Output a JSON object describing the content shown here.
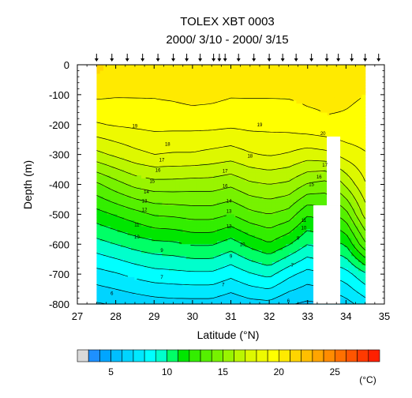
{
  "chart_data": {
    "type": "heatmap",
    "title": "TOLEX XBT 0003",
    "subtitle": "2000/ 3/10 - 2000/ 3/15",
    "xlabel": "Latitude (°N)",
    "ylabel": "Depth (m)",
    "xlim": [
      27,
      35
    ],
    "ylim": [
      -800,
      0
    ],
    "x_ticks": [
      "27",
      "28",
      "29",
      "30",
      "31",
      "32",
      "33",
      "34",
      "35"
    ],
    "y_ticks": [
      "0",
      "-100",
      "-200",
      "-300",
      "-400",
      "-500",
      "-600",
      "-700",
      "-800"
    ],
    "station_latitudes": [
      27.5,
      27.9,
      28.3,
      28.7,
      29.1,
      29.5,
      29.85,
      30.2,
      30.55,
      30.7,
      30.85,
      31.2,
      31.6,
      32.0,
      32.35,
      32.7,
      33.1,
      33.5,
      33.8,
      34.15,
      34.5,
      34.85
    ],
    "data_gaps": [
      {
        "lat": [
          27.0,
          27.5
        ],
        "depth": [
          0,
          -800
        ]
      },
      {
        "lat": [
          33.15,
          33.85
        ],
        "depth": [
          -470,
          -800
        ]
      },
      {
        "lat": [
          33.5,
          33.85
        ],
        "depth": [
          -240,
          -470
        ]
      },
      {
        "lat": [
          34.55,
          35.0
        ],
        "depth": [
          0,
          -800
        ]
      }
    ],
    "contour_levels": [
      6,
      7,
      8,
      9,
      10,
      11,
      12,
      13,
      14,
      15,
      16,
      17,
      18,
      19,
      20
    ],
    "contour_label_positions": [
      {
        "value": "19",
        "lat": 28.5,
        "depth": -205
      },
      {
        "value": "19",
        "lat": 31.75,
        "depth": -200
      },
      {
        "value": "20",
        "lat": 33.4,
        "depth": -230
      },
      {
        "value": "18",
        "lat": 29.35,
        "depth": -265
      },
      {
        "value": "18",
        "lat": 31.5,
        "depth": -305
      },
      {
        "value": "17",
        "lat": 29.2,
        "depth": -318
      },
      {
        "value": "17",
        "lat": 30.85,
        "depth": -355
      },
      {
        "value": "17",
        "lat": 33.45,
        "depth": -335
      },
      {
        "value": "16",
        "lat": 29.1,
        "depth": -353
      },
      {
        "value": "16",
        "lat": 30.85,
        "depth": -405
      },
      {
        "value": "16",
        "lat": 33.3,
        "depth": -375
      },
      {
        "value": "15",
        "lat": 28.95,
        "depth": -390
      },
      {
        "value": "15",
        "lat": 33.1,
        "depth": -400
      },
      {
        "value": "14",
        "lat": 28.8,
        "depth": -425
      },
      {
        "value": "14",
        "lat": 30.95,
        "depth": -455
      },
      {
        "value": "13",
        "lat": 28.75,
        "depth": -455
      },
      {
        "value": "13",
        "lat": 30.95,
        "depth": -490
      },
      {
        "value": "12",
        "lat": 28.75,
        "depth": -485
      },
      {
        "value": "12",
        "lat": 30.95,
        "depth": -540
      },
      {
        "value": "11",
        "lat": 28.55,
        "depth": -535
      },
      {
        "value": "11",
        "lat": 32.9,
        "depth": -520
      },
      {
        "value": "10",
        "lat": 28.55,
        "depth": -575
      },
      {
        "value": "10",
        "lat": 31.3,
        "depth": -600
      },
      {
        "value": "10",
        "lat": 32.9,
        "depth": -545
      },
      {
        "value": "9",
        "lat": 29.2,
        "depth": -620
      },
      {
        "value": "9",
        "lat": 31.0,
        "depth": -640
      },
      {
        "value": "8",
        "lat": 32.75,
        "depth": -580
      },
      {
        "value": "7",
        "lat": 29.2,
        "depth": -710
      },
      {
        "value": "7",
        "lat": 30.8,
        "depth": -735
      },
      {
        "value": "7",
        "lat": 32.6,
        "depth": -670
      },
      {
        "value": "6",
        "lat": 27.9,
        "depth": -765
      },
      {
        "value": "6",
        "lat": 32.5,
        "depth": -790
      }
    ],
    "temperature_field": {
      "lat_nodes": [
        27.5,
        28.0,
        28.5,
        29.0,
        29.5,
        30.0,
        30.5,
        31.0,
        31.5,
        32.0,
        32.5,
        33.0,
        33.5,
        34.0,
        34.5
      ],
      "depth_nodes": [
        0,
        -100,
        -200,
        -300,
        -400,
        -500,
        -600,
        -700,
        -800
      ],
      "values": [
        [
          21.4,
          20.6,
          20.4,
          20.4,
          20.4,
          20.6,
          20.9,
          21.0,
          20.9,
          20.6,
          20.4,
          20.4,
          20.3,
          20.2,
          20.1
        ],
        [
          20.2,
          20.1,
          20.1,
          20.1,
          20.2,
          20.4,
          20.3,
          20.1,
          20.1,
          20.1,
          20.1,
          20.2,
          20.2,
          20.1,
          20.0
        ],
        [
          18.9,
          19.1,
          19.2,
          19.3,
          19.3,
          19.3,
          19.3,
          19.2,
          19.3,
          19.3,
          19.4,
          19.7,
          19.9,
          19.9,
          19.8
        ],
        [
          16.7,
          17.2,
          17.7,
          18.0,
          17.9,
          17.9,
          17.7,
          17.5,
          17.9,
          18.1,
          17.9,
          17.5,
          17.7,
          18.4,
          18.9
        ],
        [
          13.8,
          14.6,
          15.3,
          15.6,
          15.6,
          15.5,
          15.5,
          15.2,
          15.8,
          16.0,
          15.8,
          14.9,
          14.6,
          16.2,
          17.9
        ],
        [
          11.6,
          12.1,
          12.6,
          13.1,
          13.2,
          13.4,
          13.4,
          13.0,
          13.7,
          14.0,
          13.6,
          12.1,
          12.5,
          13.6,
          16.4
        ],
        [
          9.6,
          10.0,
          10.4,
          10.7,
          10.8,
          11.1,
          11.1,
          10.5,
          11.3,
          11.9,
          11.1,
          10.0,
          10.5,
          11.1,
          13.8
        ],
        [
          7.6,
          7.9,
          8.3,
          8.6,
          8.7,
          8.8,
          8.8,
          8.3,
          8.9,
          9.3,
          8.3,
          7.6,
          8.0,
          8.6,
          9.8
        ],
        [
          5.9,
          6.1,
          6.3,
          6.5,
          6.6,
          6.6,
          6.6,
          6.2,
          6.6,
          6.7,
          6.1,
          5.8,
          6.0,
          6.6,
          7.5
        ]
      ]
    },
    "colorbar": {
      "unit": "(°C)",
      "tick_labels": [
        "5",
        "10",
        "15",
        "20",
        "25"
      ],
      "tick_values": [
        5,
        10,
        15,
        20,
        25
      ],
      "bins": [
        {
          "range": "<3",
          "color": "#d9d9d9"
        },
        {
          "range": "3-4",
          "color": "#1e90ff"
        },
        {
          "range": "4-5",
          "color": "#00a5ff"
        },
        {
          "range": "5-6",
          "color": "#00bfff"
        },
        {
          "range": "6-7",
          "color": "#00d4ff"
        },
        {
          "range": "7-8",
          "color": "#00e8ff"
        },
        {
          "range": "8-9",
          "color": "#00ffff"
        },
        {
          "range": "9-10",
          "color": "#00ffcc"
        },
        {
          "range": "10-11",
          "color": "#00ff66"
        },
        {
          "range": "11-12",
          "color": "#00e600"
        },
        {
          "range": "12-13",
          "color": "#33ee00"
        },
        {
          "range": "13-14",
          "color": "#55f000"
        },
        {
          "range": "14-15",
          "color": "#77f200"
        },
        {
          "range": "15-16",
          "color": "#99f400"
        },
        {
          "range": "16-17",
          "color": "#bbf600"
        },
        {
          "range": "17-18",
          "color": "#ddf800"
        },
        {
          "range": "18-19",
          "color": "#eefa00"
        },
        {
          "range": "19-20",
          "color": "#ffff00"
        },
        {
          "range": "20-21",
          "color": "#ffea00"
        },
        {
          "range": "21-22",
          "color": "#ffd500"
        },
        {
          "range": "22-23",
          "color": "#ffbf00"
        },
        {
          "range": "23-24",
          "color": "#ffa500"
        },
        {
          "range": "24-25",
          "color": "#ff8c00"
        },
        {
          "range": "25-26",
          "color": "#ff7000"
        },
        {
          "range": "26-27",
          "color": "#ff5500"
        },
        {
          "range": "27-28",
          "color": "#ff3a00"
        },
        {
          "range": ">28",
          "color": "#ff2000"
        }
      ]
    }
  }
}
